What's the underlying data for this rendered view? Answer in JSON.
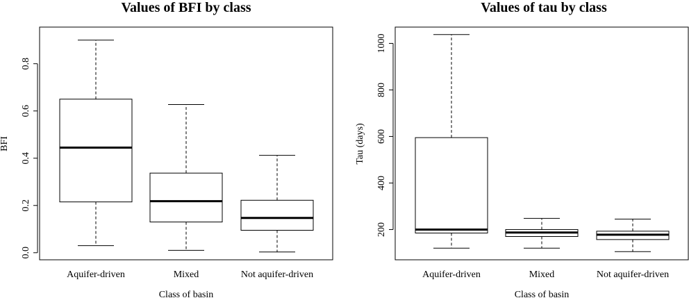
{
  "chart_data": [
    {
      "type": "box",
      "title": "Values of BFI by class",
      "xlabel": "Class of basin",
      "ylabel": "BFI",
      "categories": [
        "Aquifer-driven",
        "Mixed",
        "Not aquifer-driven"
      ],
      "boxes": [
        {
          "min": 0.03,
          "q1": 0.215,
          "median": 0.445,
          "q3": 0.65,
          "max": 0.9
        },
        {
          "min": 0.01,
          "q1": 0.13,
          "median": 0.218,
          "q3": 0.337,
          "max": 0.627
        },
        {
          "min": 0.003,
          "q1": 0.095,
          "median": 0.147,
          "q3": 0.222,
          "max": 0.412
        }
      ],
      "ylim": [
        -0.03,
        0.955
      ],
      "yticks": [
        0.0,
        0.2,
        0.4,
        0.6,
        0.8
      ],
      "ytick_labels": [
        "0.0",
        "0.2",
        "0.4",
        "0.6",
        "0.8"
      ],
      "grid": false,
      "legend": false
    },
    {
      "type": "box",
      "title": "Values of tau by class",
      "xlabel": "Class of basin",
      "ylabel": "Tau (days)",
      "categories": [
        "Aquifer-driven",
        "Mixed",
        "Not aquifer-driven"
      ],
      "boxes": [
        {
          "min": 120,
          "q1": 185,
          "median": 200,
          "q3": 595,
          "max": 1038
        },
        {
          "min": 120,
          "q1": 170,
          "median": 187,
          "q3": 200,
          "max": 248
        },
        {
          "min": 105,
          "q1": 157,
          "median": 178,
          "q3": 193,
          "max": 245
        }
      ],
      "ylim": [
        70,
        1070
      ],
      "yticks": [
        200,
        400,
        600,
        800,
        1000
      ],
      "ytick_labels": [
        "200",
        "400",
        "600",
        "800",
        "1000"
      ],
      "grid": false,
      "legend": false
    }
  ]
}
